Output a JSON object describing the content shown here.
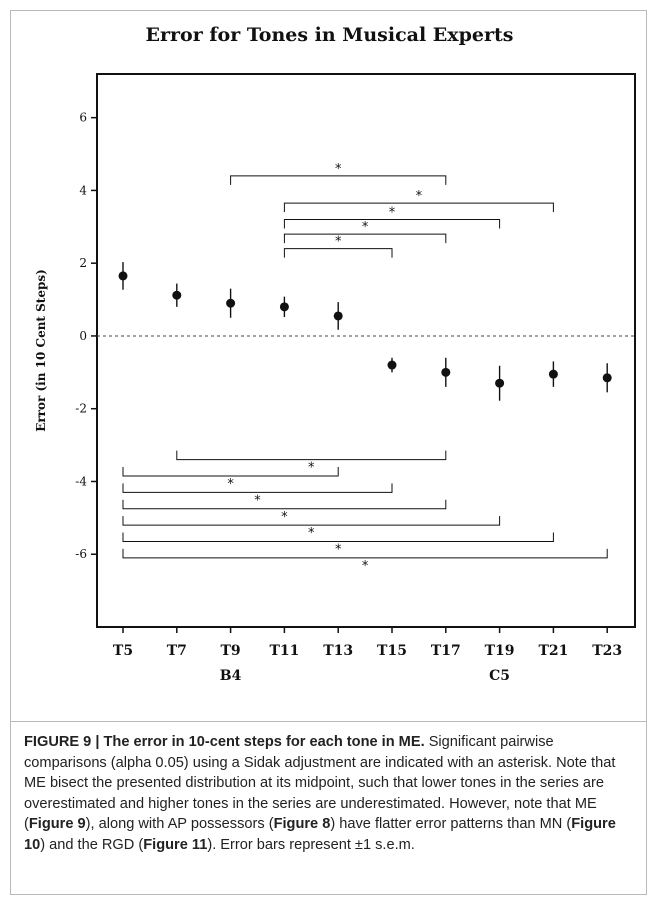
{
  "chart_data": {
    "type": "scatter",
    "title": "Error for Tones in Musical Experts",
    "ylabel": "Error (in 10 Cent Steps)",
    "xlabel": "",
    "ylim": [
      -8,
      7.2
    ],
    "yticks": [
      6,
      4,
      2,
      0,
      -2,
      -4,
      -6
    ],
    "ytick_labels": [
      "6",
      "4",
      "2",
      "0",
      "-2",
      "-4",
      "-6"
    ],
    "categories": [
      "T5",
      "T7",
      "T9",
      "T11",
      "T13",
      "T15",
      "T17",
      "T19",
      "T21",
      "T23"
    ],
    "sub_labels": [
      {
        "category": "T9",
        "text": "B4"
      },
      {
        "category": "T19",
        "text": "C5"
      }
    ],
    "series": [
      {
        "values": [
          1.65,
          1.12,
          0.9,
          0.8,
          0.55,
          -0.8,
          -1.0,
          -1.3,
          -1.05,
          -1.15
        ],
        "sem": [
          0.38,
          0.32,
          0.4,
          0.28,
          0.38,
          0.2,
          0.4,
          0.48,
          0.35,
          0.4
        ]
      }
    ],
    "reference_line": {
      "y": 0,
      "style": "dashed"
    },
    "comparisons_upper": [
      {
        "from": "T9",
        "to": "T17",
        "y": 4.4,
        "label": "*"
      },
      {
        "from": "T11",
        "to": "T21",
        "y": 3.65,
        "label": "*"
      },
      {
        "from": "T11",
        "to": "T19",
        "y": 3.2,
        "label": "*"
      },
      {
        "from": "T11",
        "to": "T17",
        "y": 2.8,
        "label": "*"
      },
      {
        "from": "T11",
        "to": "T15",
        "y": 2.4,
        "label": "*"
      }
    ],
    "comparisons_lower": [
      {
        "from": "T7",
        "to": "T17",
        "y": -3.4,
        "label": "*"
      },
      {
        "from": "T5",
        "to": "T13",
        "y": -3.85,
        "label": "*"
      },
      {
        "from": "T5",
        "to": "T15",
        "y": -4.3,
        "label": "*"
      },
      {
        "from": "T5",
        "to": "T17",
        "y": -4.75,
        "label": "*"
      },
      {
        "from": "T5",
        "to": "T19",
        "y": -5.2,
        "label": "*"
      },
      {
        "from": "T5",
        "to": "T21",
        "y": -5.65,
        "label": "*"
      },
      {
        "from": "T5",
        "to": "T23",
        "y": -6.1,
        "label": "*"
      }
    ],
    "grid": false,
    "legend": "none"
  },
  "caption": {
    "label": "FIGURE 9 | The error in 10-cent steps for each tone in ME.",
    "text_1": " Significant pairwise comparisons (alpha 0.05) using a Sidak adjustment are indicated with an asterisk. Note that ME bisect the presented distribution at its midpoint, such that lower tones in the series are overestimated and higher tones in the series are underestimated. However, note that ME (",
    "ref_fig9": "Figure 9",
    "text_2": "), along with AP possessors (",
    "ref_fig8": "Figure 8",
    "text_3": ") have flatter error patterns than MN (",
    "ref_fig10": "Figure 10",
    "text_4": ") and the RGD (",
    "ref_fig11": "Figure 11",
    "text_5": "). Error bars represent ±1 s.e.m."
  },
  "colors": {
    "ink": "#111111",
    "frame": "#b9b9b9"
  }
}
